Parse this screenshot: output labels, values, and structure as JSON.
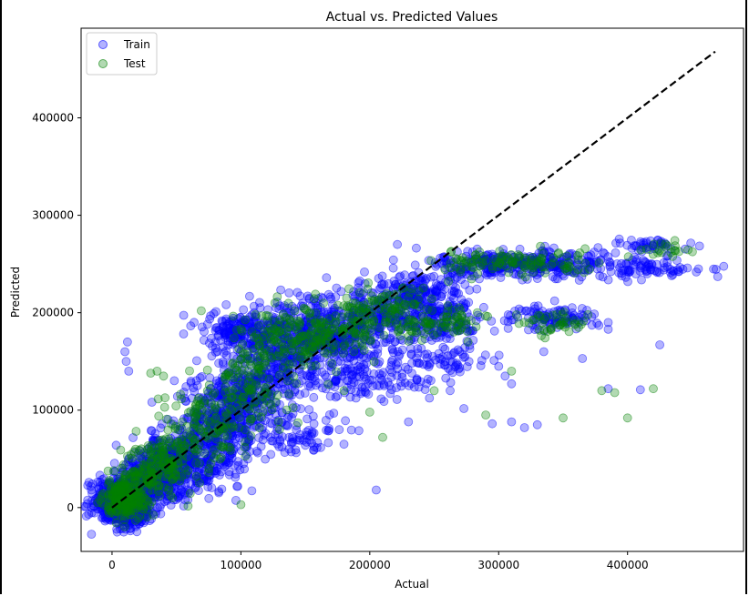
{
  "chart_data": {
    "type": "scatter",
    "title": "Actual vs. Predicted Values",
    "xlabel": "Actual",
    "ylabel": "Predicted",
    "xlim": [
      -24000,
      490000
    ],
    "ylim": [
      -45000,
      492000
    ],
    "xticks": [
      0,
      100000,
      200000,
      300000,
      400000
    ],
    "xtick_labels": [
      "0",
      "100000",
      "200000",
      "300000",
      "400000"
    ],
    "yticks": [
      0,
      100000,
      200000,
      300000,
      400000
    ],
    "ytick_labels": [
      "0",
      "100000",
      "200000",
      "300000",
      "400000"
    ],
    "grid": false,
    "legend_position": "upper-left",
    "reference_line": {
      "style": "dashed",
      "color": "#000000",
      "x": [
        0,
        468000
      ],
      "y": [
        0,
        468000
      ]
    },
    "series": [
      {
        "name": "Train",
        "color": "#0000ff",
        "alpha": 0.3,
        "clusters": [
          [
            5000,
            5000,
            18000,
            20000,
            400
          ],
          [
            15000,
            -5000,
            10000,
            12000,
            200
          ],
          [
            30000,
            30000,
            20000,
            25000,
            350
          ],
          [
            55000,
            45000,
            25000,
            30000,
            300
          ],
          [
            80000,
            80000,
            30000,
            40000,
            300
          ],
          [
            100000,
            110000,
            25000,
            35000,
            260
          ],
          [
            100000,
            180000,
            25000,
            20000,
            180
          ],
          [
            130000,
            150000,
            30000,
            40000,
            260
          ],
          [
            155000,
            180000,
            30000,
            30000,
            240
          ],
          [
            180000,
            170000,
            30000,
            35000,
            200
          ],
          [
            210000,
            200000,
            30000,
            30000,
            200
          ],
          [
            240000,
            220000,
            30000,
            25000,
            180
          ],
          [
            260000,
            190000,
            25000,
            20000,
            120
          ],
          [
            290000,
            250000,
            30000,
            10000,
            140
          ],
          [
            330000,
            250000,
            35000,
            12000,
            140
          ],
          [
            340000,
            195000,
            30000,
            10000,
            100
          ],
          [
            380000,
            250000,
            40000,
            15000,
            80
          ],
          [
            420000,
            270000,
            25000,
            6000,
            40
          ],
          [
            420000,
            245000,
            30000,
            6000,
            50
          ],
          [
            200000,
            130000,
            40000,
            20000,
            100
          ],
          [
            260000,
            150000,
            30000,
            12000,
            60
          ],
          [
            140000,
            75000,
            30000,
            15000,
            80
          ]
        ],
        "points": [
          [
            12000,
            170000
          ],
          [
            10000,
            160000
          ],
          [
            11000,
            150000
          ],
          [
            13000,
            140000
          ],
          [
            205000,
            18000
          ],
          [
            310000,
            88000
          ],
          [
            320000,
            82000
          ],
          [
            330000,
            85000
          ],
          [
            365000,
            153000
          ],
          [
            425000,
            167000
          ],
          [
            470000,
            237000
          ],
          [
            455000,
            245000
          ],
          [
            385000,
            122000
          ],
          [
            410000,
            121000
          ],
          [
            230000,
            88000
          ],
          [
            180000,
            65000
          ],
          [
            150000,
            64000
          ],
          [
            295000,
            86000
          ],
          [
            310000,
            127000
          ],
          [
            335000,
            160000
          ],
          [
            385000,
            183000
          ],
          [
            385000,
            190000
          ],
          [
            300000,
            145000
          ],
          [
            305000,
            135000
          ]
        ]
      },
      {
        "name": "Test",
        "color": "#008000",
        "alpha": 0.3,
        "clusters": [
          [
            10000,
            10000,
            15000,
            18000,
            220
          ],
          [
            35000,
            40000,
            22000,
            25000,
            160
          ],
          [
            70000,
            80000,
            28000,
            35000,
            140
          ],
          [
            110000,
            130000,
            30000,
            40000,
            130
          ],
          [
            140000,
            175000,
            30000,
            30000,
            130
          ],
          [
            180000,
            185000,
            30000,
            25000,
            100
          ],
          [
            220000,
            205000,
            30000,
            25000,
            90
          ],
          [
            260000,
            190000,
            25000,
            15000,
            60
          ],
          [
            290000,
            250000,
            30000,
            10000,
            60
          ],
          [
            340000,
            250000,
            30000,
            12000,
            50
          ],
          [
            340000,
            190000,
            20000,
            10000,
            40
          ],
          [
            430000,
            265000,
            20000,
            8000,
            20
          ]
        ],
        "points": [
          [
            35000,
            140000
          ],
          [
            30000,
            138000
          ],
          [
            40000,
            135000
          ],
          [
            100000,
            3000
          ],
          [
            210000,
            72000
          ],
          [
            290000,
            95000
          ],
          [
            350000,
            92000
          ],
          [
            400000,
            92000
          ],
          [
            380000,
            120000
          ],
          [
            390000,
            118000
          ],
          [
            420000,
            122000
          ],
          [
            310000,
            140000
          ],
          [
            200000,
            98000
          ],
          [
            180000,
            120000
          ],
          [
            250000,
            120000
          ]
        ]
      }
    ]
  }
}
